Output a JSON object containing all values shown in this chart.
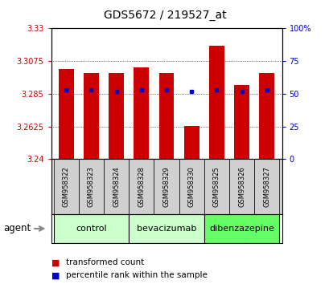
{
  "title": "GDS5672 / 219527_at",
  "samples": [
    "GSM958322",
    "GSM958323",
    "GSM958324",
    "GSM958328",
    "GSM958329",
    "GSM958330",
    "GSM958325",
    "GSM958326",
    "GSM958327"
  ],
  "red_values": [
    3.302,
    3.299,
    3.299,
    3.303,
    3.299,
    3.263,
    3.318,
    3.291,
    3.299
  ],
  "blue_values": [
    53,
    53,
    52,
    53,
    53,
    52,
    53,
    52,
    53
  ],
  "y_min": 3.24,
  "y_max": 3.33,
  "y_ticks": [
    3.24,
    3.2625,
    3.285,
    3.3075,
    3.33
  ],
  "y_tick_labels": [
    "3.24",
    "3.2625",
    "3.285",
    "3.3075",
    "3.33"
  ],
  "y2_ticks": [
    0,
    25,
    50,
    75,
    100
  ],
  "y2_tick_labels": [
    "0",
    "25",
    "50",
    "75",
    "100%"
  ],
  "groups": [
    {
      "label": "control",
      "start": 0,
      "end": 2,
      "color": "#ccffcc"
    },
    {
      "label": "bevacizumab",
      "start": 3,
      "end": 5,
      "color": "#ccffcc"
    },
    {
      "label": "dibenzazepine",
      "start": 6,
      "end": 8,
      "color": "#66ff66"
    }
  ],
  "bar_color": "#cc0000",
  "dot_color": "#0000cc",
  "bg_color": "#ffffff",
  "plot_bg_color": "#ffffff",
  "tick_color_left": "#cc0000",
  "tick_color_right": "#0000cc",
  "legend_red_label": "transformed count",
  "legend_blue_label": "percentile rank within the sample",
  "agent_label": "agent"
}
